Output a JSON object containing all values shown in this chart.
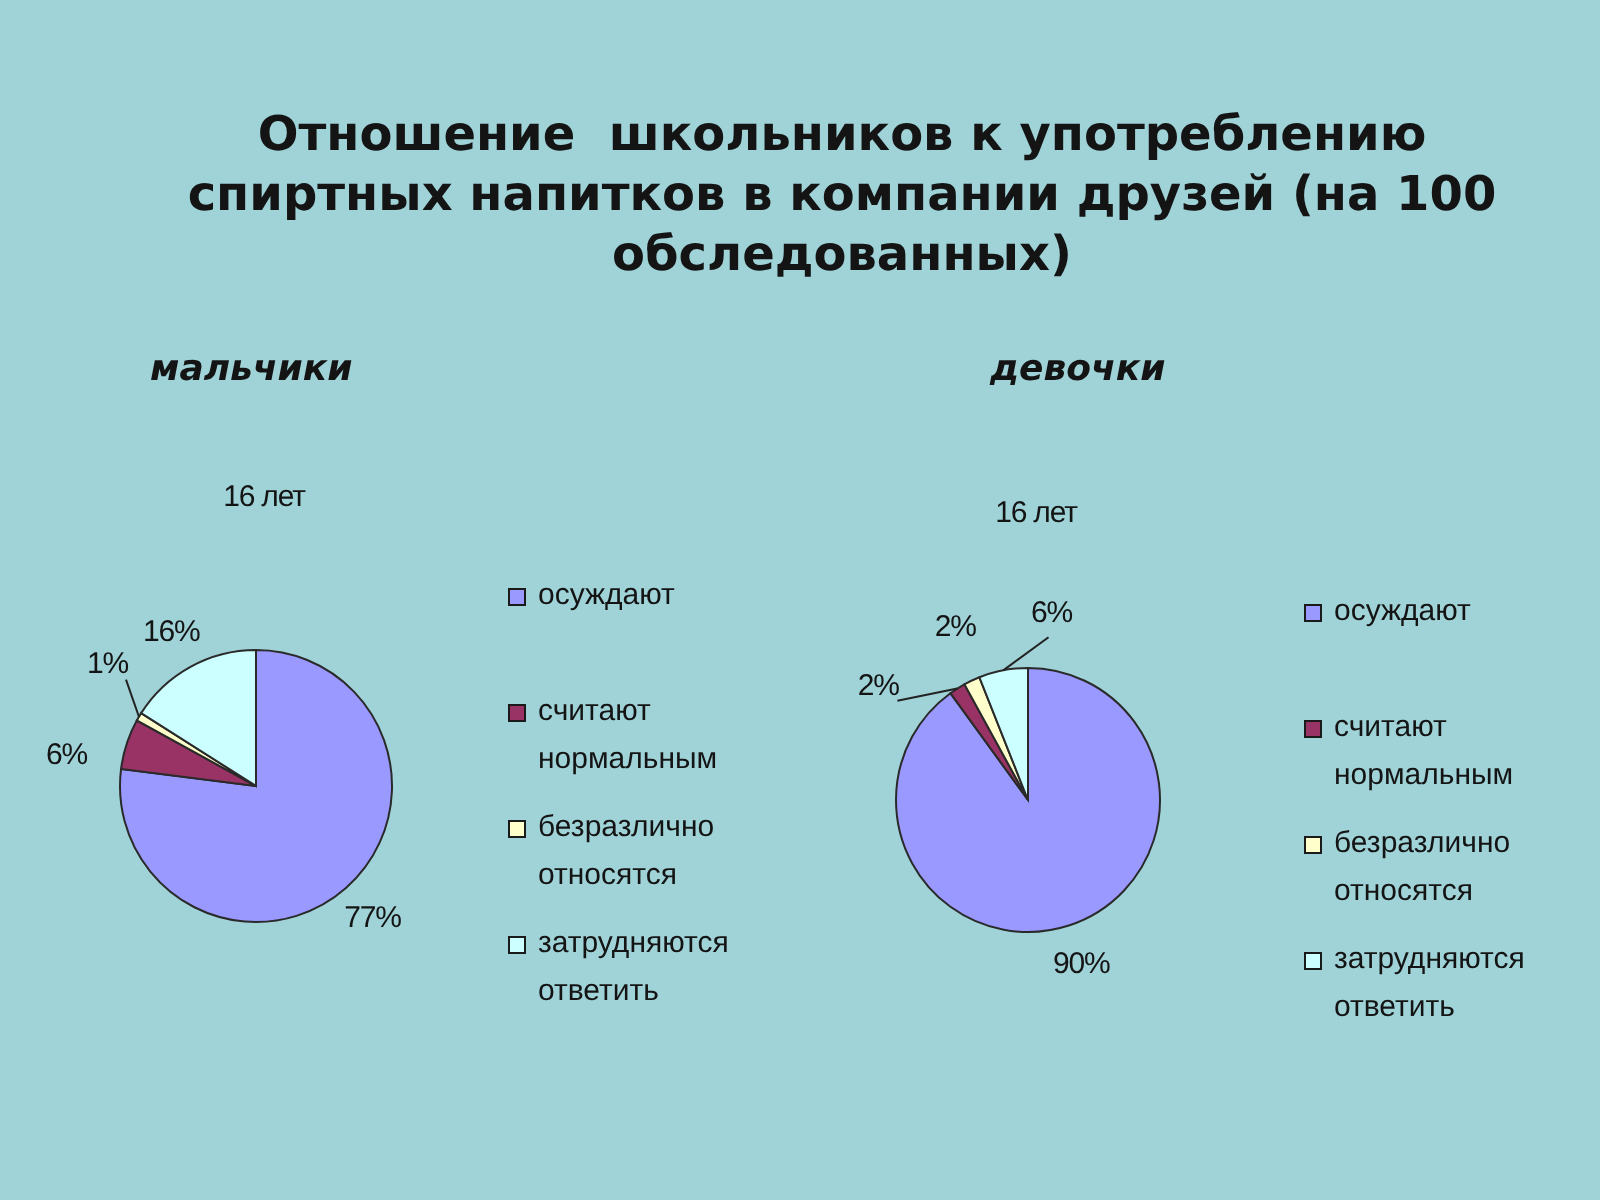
{
  "chart_data": [
    {
      "type": "pie",
      "title": "Отношение  школьников к употреблению спиртных напитков в компании друзей (на 100 обследованных)",
      "subtitle": "мальчики",
      "annotations": [
        "16 лет"
      ],
      "categories": [
        "осуждают",
        "считают нормальным",
        "безразлично относятся",
        "затрудняются ответить"
      ],
      "values": [
        77,
        6,
        1,
        16
      ],
      "colors": [
        "#9999ff",
        "#993366",
        "#ffffcc",
        "#ccffff"
      ],
      "value_labels": [
        "77%",
        "6%",
        "1%",
        "16%"
      ],
      "legend": "right"
    },
    {
      "type": "pie",
      "subtitle": "девочки",
      "annotations": [
        "16 лет"
      ],
      "categories": [
        "осуждают",
        "считают нормальным",
        "безразлично относятся",
        "затрудняются ответить"
      ],
      "values": [
        90,
        2,
        2,
        6
      ],
      "colors": [
        "#9999ff",
        "#993366",
        "#ffffcc",
        "#ccffff"
      ],
      "value_labels": [
        "90%",
        "2%",
        "2%",
        "6%"
      ],
      "legend": "right"
    }
  ]
}
